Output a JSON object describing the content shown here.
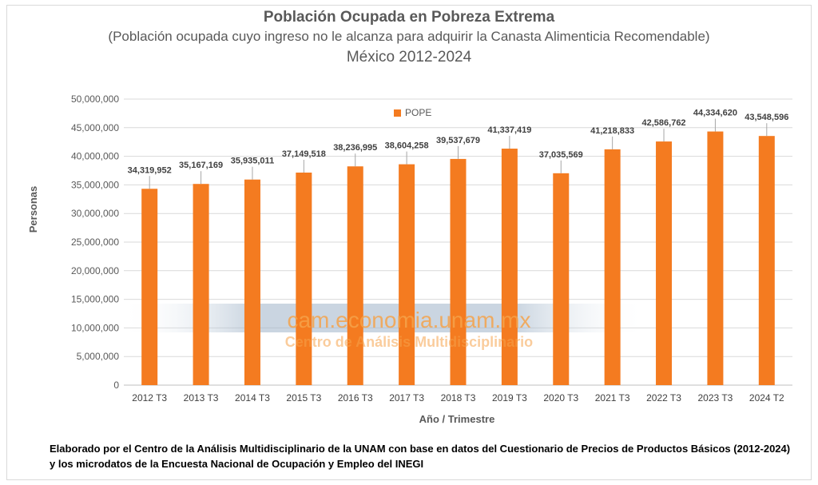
{
  "chart_data": {
    "type": "bar",
    "title": "Población Ocupada en Pobreza Extrema",
    "subtitle": "(Población ocupada cuyo ingreso no le alcanza para adquirir la Canasta Alimenticia Recomendable)",
    "subtitle2": "México 2012-2024",
    "xlabel": "Año / Trimestre",
    "ylabel": "Personas",
    "ylim": [
      0,
      50000000
    ],
    "yticks": [
      "0",
      "5,000,000",
      "10,000,000",
      "15,000,000",
      "20,000,000",
      "25,000,000",
      "30,000,000",
      "35,000,000",
      "40,000,000",
      "45,000,000",
      "50,000,000"
    ],
    "categories": [
      "2012 T3",
      "2013 T3",
      "2014 T3",
      "2015 T3",
      "2016 T3",
      "2017 T3",
      "2018 T3",
      "2019 T3",
      "2020 T3",
      "2021 T3",
      "2022 T3",
      "2023 T3",
      "2024 T2"
    ],
    "series": [
      {
        "name": "POPE",
        "color": "#F47B20",
        "values": [
          34319952,
          35167169,
          35935011,
          37149518,
          38236995,
          38604258,
          39537679,
          41337419,
          37035569,
          41218833,
          42586762,
          44334620,
          43548596
        ],
        "labels": [
          "34,319,952",
          "35,167,169",
          "35,935,011",
          "37,149,518",
          "38,236,995",
          "38,604,258",
          "39,537,679",
          "41,337,419",
          "37,035,569",
          "41,218,833",
          "42,586,762",
          "44,334,620",
          "43,548,596"
        ]
      }
    ],
    "legend_position": "top-center",
    "grid": true
  },
  "watermark": {
    "line1": "cam.economia.unam.mx",
    "line2": "Centro de Análisis Multidisciplinario"
  },
  "footer": "Elaborado por el Centro de la Análisis Multidisciplinario de la UNAM con base en datos del Cuestionario de Precios de Productos Básicos (2012-2024) y los microdatos de la Encuesta Nacional de Ocupación y Empleo del INEGI"
}
